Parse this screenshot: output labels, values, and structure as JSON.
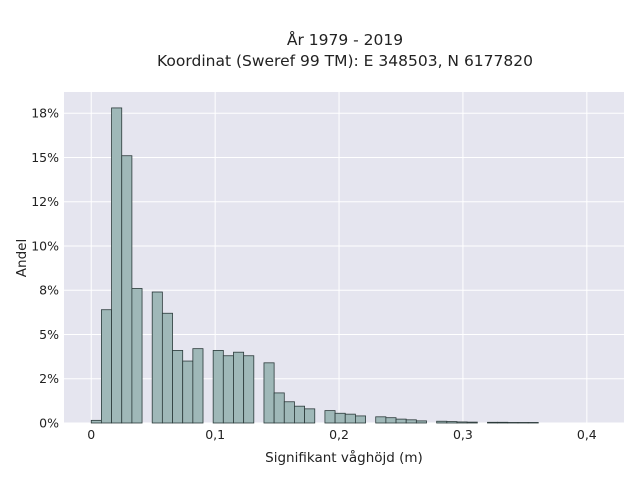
{
  "chart_data": {
    "type": "bar",
    "title": "År 1979 - 2019",
    "subtitle": "Koordinat (Sweref 99 TM): E 348503, N 6177820",
    "xlabel": "Signifikant våghöjd (m)",
    "ylabel": "Andel",
    "xlim": [
      -0.022,
      0.43
    ],
    "ylim": [
      0,
      0.187
    ],
    "grid": true,
    "x_ticks": [
      {
        "value": 0.0,
        "label": "0"
      },
      {
        "value": 0.1,
        "label": "0,1"
      },
      {
        "value": 0.2,
        "label": "0,2"
      },
      {
        "value": 0.3,
        "label": "0,3"
      },
      {
        "value": 0.4,
        "label": "0,4"
      }
    ],
    "y_ticks": [
      {
        "value": 0.0,
        "label": "0%"
      },
      {
        "value": 0.025,
        "label": "2%"
      },
      {
        "value": 0.05,
        "label": "5%"
      },
      {
        "value": 0.075,
        "label": "8%"
      },
      {
        "value": 0.1,
        "label": "10%"
      },
      {
        "value": 0.125,
        "label": "12%"
      },
      {
        "value": 0.15,
        "label": "15%"
      },
      {
        "value": 0.175,
        "label": "18%"
      }
    ],
    "bin_width": 0.0082,
    "bars": [
      {
        "x": 0.0,
        "value": 0.0015
      },
      {
        "x": 0.0082,
        "value": 0.064
      },
      {
        "x": 0.0164,
        "value": 0.178
      },
      {
        "x": 0.0246,
        "value": 0.151
      },
      {
        "x": 0.0328,
        "value": 0.076
      },
      {
        "x": 0.0492,
        "value": 0.074
      },
      {
        "x": 0.0574,
        "value": 0.062
      },
      {
        "x": 0.0656,
        "value": 0.041
      },
      {
        "x": 0.0738,
        "value": 0.035
      },
      {
        "x": 0.082,
        "value": 0.042
      },
      {
        "x": 0.0984,
        "value": 0.041
      },
      {
        "x": 0.1066,
        "value": 0.038
      },
      {
        "x": 0.1148,
        "value": 0.04
      },
      {
        "x": 0.123,
        "value": 0.038
      },
      {
        "x": 0.1394,
        "value": 0.034
      },
      {
        "x": 0.1476,
        "value": 0.017
      },
      {
        "x": 0.1558,
        "value": 0.012
      },
      {
        "x": 0.164,
        "value": 0.0095
      },
      {
        "x": 0.1722,
        "value": 0.008
      },
      {
        "x": 0.1886,
        "value": 0.007
      },
      {
        "x": 0.1968,
        "value": 0.0055
      },
      {
        "x": 0.205,
        "value": 0.005
      },
      {
        "x": 0.2132,
        "value": 0.004
      },
      {
        "x": 0.2296,
        "value": 0.0035
      },
      {
        "x": 0.2378,
        "value": 0.003
      },
      {
        "x": 0.246,
        "value": 0.0022
      },
      {
        "x": 0.2542,
        "value": 0.0018
      },
      {
        "x": 0.2624,
        "value": 0.0012
      },
      {
        "x": 0.2788,
        "value": 0.001
      },
      {
        "x": 0.287,
        "value": 0.0008
      },
      {
        "x": 0.2952,
        "value": 0.0006
      },
      {
        "x": 0.3034,
        "value": 0.0005
      },
      {
        "x": 0.3198,
        "value": 0.0004
      },
      {
        "x": 0.328,
        "value": 0.0004
      },
      {
        "x": 0.3362,
        "value": 0.0003
      },
      {
        "x": 0.3444,
        "value": 0.0003
      },
      {
        "x": 0.3526,
        "value": 0.0003
      }
    ],
    "colors": {
      "plot_background": "#e5e5ef",
      "grid": "#ffffff",
      "bar_fill": "#9fb8b8",
      "bar_stroke": "#2b3a3a"
    }
  }
}
